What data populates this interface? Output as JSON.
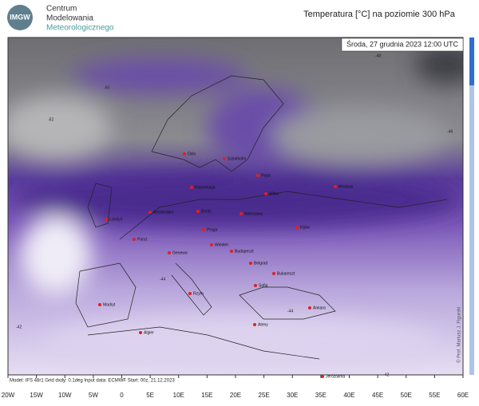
{
  "header": {
    "logo": "IMGW",
    "org_lines": [
      "Centrum",
      "Modelowania",
      "Meteorologicznego"
    ],
    "title": "Temperatura [°C] na poziomie 300 hPa",
    "date": "Środa, 27 grudnia 2023 12:00 UTC"
  },
  "map": {
    "cities": [
      "Oslo",
      "Sztokholm",
      "Ryga",
      "Moskwa",
      "Kopenhaga",
      "Wilno",
      "Londyn",
      "Amsterdam",
      "Berlin",
      "Warszawa",
      "Kijów",
      "Paryż",
      "Praga",
      "Wiedeń",
      "Budapeszt",
      "Genewa",
      "Belgrad",
      "Bukareszt",
      "Sofia",
      "Madryt",
      "Rzym",
      "Ateny",
      "Ankara",
      "Algier",
      "Jerozolima"
    ],
    "contour_labels": [
      "-52",
      "-50",
      "-48",
      "-46",
      "-44",
      "-44",
      "-42",
      "-42"
    ],
    "x_axis": [
      "20W",
      "15W",
      "10W",
      "5W",
      "0",
      "5E",
      "10E",
      "15E",
      "20E",
      "25E",
      "30E",
      "35E",
      "40E",
      "45E",
      "50E",
      "55E",
      "60E"
    ],
    "footer": "Model: IFS 48r1  Grid dxdy: 0.1deg  Input data: ECMWF  Start: 00z, 21.12.2023",
    "credit": "© Prof. Mariusz J. Figurski"
  }
}
